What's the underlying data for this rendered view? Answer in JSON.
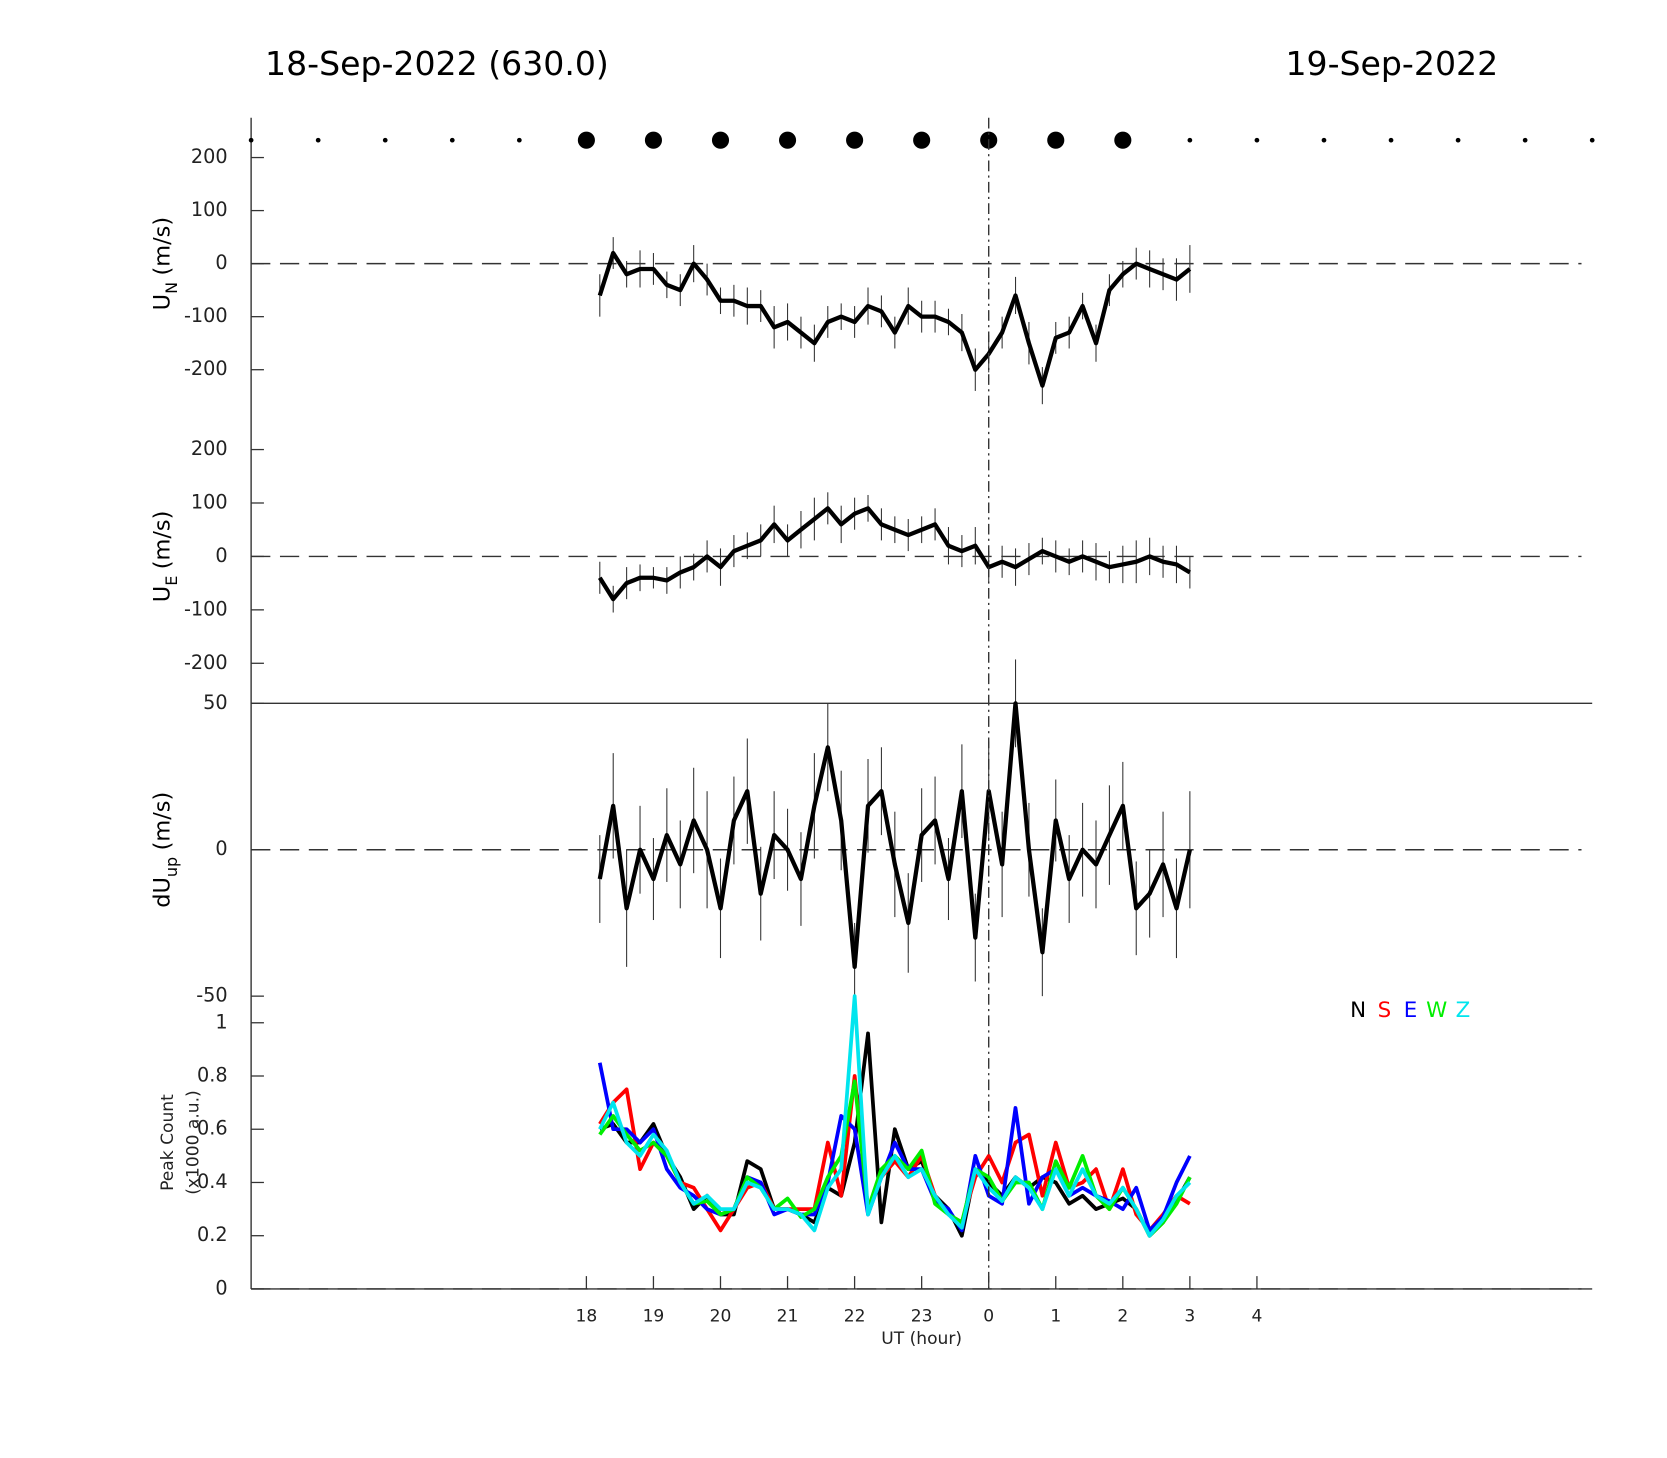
{
  "chart_data": [
    {
      "type": "line",
      "title_left": "18-Sep-2022 (630.0)",
      "title_right": "19-Sep-2022",
      "top_markers_x": [
        13,
        14,
        15,
        16,
        17,
        18,
        19,
        20,
        21,
        22,
        23,
        24,
        25,
        26,
        27,
        28,
        29,
        30,
        31,
        32,
        33
      ],
      "top_markers_large": [
        false,
        false,
        false,
        false,
        false,
        true,
        true,
        true,
        true,
        true,
        true,
        true,
        true,
        true,
        false,
        false,
        false,
        false,
        false,
        false,
        false
      ],
      "vline_x": 24,
      "ylabel": {
        "main": "U",
        "sub": "N",
        "unit": "(m/s)"
      },
      "xlim": [
        13,
        33
      ],
      "ylim": [
        -275,
        275
      ],
      "yticks": [
        -200,
        -100,
        0,
        100,
        200
      ],
      "zero_line": true,
      "x": [
        18.2,
        18.4,
        18.6,
        18.8,
        19,
        19.2,
        19.4,
        19.6,
        19.8,
        20,
        20.2,
        20.4,
        20.6,
        20.8,
        21,
        21.2,
        21.4,
        21.6,
        21.8,
        22,
        22.2,
        22.4,
        22.6,
        22.8,
        23,
        23.2,
        23.4,
        23.6,
        23.8,
        24,
        24.2,
        24.4,
        24.6,
        24.8,
        25,
        25.2,
        25.4,
        25.6,
        25.8,
        26,
        26.2,
        26.4,
        26.6,
        26.8,
        27
      ],
      "series": [
        {
          "color": "#000000",
          "values": [
            -60,
            20,
            -20,
            -10,
            -10,
            -40,
            -50,
            0,
            -30,
            -70,
            -70,
            -80,
            -80,
            -120,
            -110,
            -130,
            -150,
            -110,
            -100,
            -110,
            -80,
            -90,
            -130,
            -80,
            -100,
            -100,
            -110,
            -130,
            -200,
            -170,
            -130,
            -60,
            -150,
            -230,
            -140,
            -130,
            -80,
            -150,
            -50,
            -20,
            0,
            -10,
            -20,
            -30,
            -10
          ],
          "errors": [
            40,
            30,
            25,
            35,
            30,
            25,
            30,
            35,
            30,
            25,
            30,
            35,
            30,
            40,
            35,
            30,
            35,
            30,
            25,
            30,
            35,
            30,
            30,
            35,
            30,
            30,
            25,
            35,
            40,
            35,
            30,
            35,
            40,
            35,
            30,
            30,
            25,
            35,
            30,
            25,
            30,
            35,
            30,
            40,
            45
          ]
        }
      ]
    },
    {
      "type": "line",
      "ylabel": {
        "main": "U",
        "sub": "E",
        "unit": "(m/s)"
      },
      "xlim": [
        13,
        33
      ],
      "ylim": [
        -275,
        275
      ],
      "yticks": [
        -200,
        -100,
        0,
        100,
        200
      ],
      "zero_line": true,
      "x": [
        18.2,
        18.4,
        18.6,
        18.8,
        19,
        19.2,
        19.4,
        19.6,
        19.8,
        20,
        20.2,
        20.4,
        20.6,
        20.8,
        21,
        21.2,
        21.4,
        21.6,
        21.8,
        22,
        22.2,
        22.4,
        22.6,
        22.8,
        23,
        23.2,
        23.4,
        23.6,
        23.8,
        24,
        24.2,
        24.4,
        24.6,
        24.8,
        25,
        25.2,
        25.4,
        25.6,
        25.8,
        26,
        26.2,
        26.4,
        26.6,
        26.8,
        27
      ],
      "series": [
        {
          "color": "#000000",
          "values": [
            -40,
            -80,
            -50,
            -40,
            -40,
            -45,
            -30,
            -20,
            0,
            -20,
            10,
            20,
            30,
            60,
            30,
            50,
            70,
            90,
            60,
            80,
            90,
            60,
            50,
            40,
            50,
            60,
            20,
            10,
            20,
            -20,
            -10,
            -20,
            -5,
            10,
            0,
            -10,
            0,
            -10,
            -20,
            -15,
            -10,
            0,
            -10,
            -15,
            -30
          ],
          "errors": [
            30,
            25,
            30,
            25,
            20,
            25,
            30,
            25,
            30,
            35,
            30,
            25,
            30,
            35,
            30,
            35,
            40,
            30,
            35,
            30,
            25,
            30,
            25,
            30,
            25,
            30,
            35,
            30,
            35,
            30,
            30,
            35,
            30,
            25,
            30,
            25,
            30,
            35,
            30,
            35,
            40,
            35,
            30,
            35,
            30
          ]
        }
      ]
    },
    {
      "type": "line",
      "ylabel": {
        "main": "dU",
        "sub": "up",
        "unit": "(m/s)"
      },
      "xlim": [
        13,
        33
      ],
      "ylim": [
        -50,
        50
      ],
      "yticks": [
        -50,
        0,
        50
      ],
      "zero_line": true,
      "x": [
        18.2,
        18.4,
        18.6,
        18.8,
        19,
        19.2,
        19.4,
        19.6,
        19.8,
        20,
        20.2,
        20.4,
        20.6,
        20.8,
        21,
        21.2,
        21.4,
        21.6,
        21.8,
        22,
        22.2,
        22.4,
        22.6,
        22.8,
        23,
        23.2,
        23.4,
        23.6,
        23.8,
        24,
        24.2,
        24.4,
        24.6,
        24.8,
        25,
        25.2,
        25.4,
        25.6,
        25.8,
        26,
        26.2,
        26.4,
        26.6,
        26.8,
        27
      ],
      "series": [
        {
          "color": "#000000",
          "values": [
            -10,
            15,
            -20,
            0,
            -10,
            5,
            -5,
            10,
            0,
            -20,
            10,
            20,
            -15,
            5,
            0,
            -10,
            15,
            35,
            10,
            -40,
            15,
            20,
            -5,
            -25,
            5,
            10,
            -10,
            20,
            -30,
            20,
            -5,
            50,
            0,
            -35,
            10,
            -10,
            0,
            -5,
            5,
            15,
            -20,
            -15,
            -5,
            -20,
            0
          ],
          "errors": [
            15,
            18,
            20,
            15,
            14,
            16,
            15,
            18,
            20,
            17,
            15,
            18,
            16,
            15,
            14,
            16,
            18,
            15,
            17,
            15,
            16,
            15,
            18,
            17,
            16,
            15,
            14,
            16,
            15,
            17,
            18,
            15,
            16,
            15,
            14,
            15,
            16,
            15,
            17,
            15,
            16,
            15,
            18,
            17,
            20
          ]
        }
      ]
    },
    {
      "type": "line",
      "ylabel": [
        "Peak Count",
        "(x1000 a.u.)"
      ],
      "xlabel": "UT (hour)",
      "xlim": [
        13,
        33
      ],
      "ylim": [
        0,
        1.1
      ],
      "yticks": [
        0,
        0.2,
        0.4,
        0.6,
        0.8,
        1
      ],
      "zero_line": true,
      "xticks": [
        18,
        19,
        20,
        21,
        22,
        23,
        {
          "value": 24,
          "label": "0"
        },
        {
          "value": 25,
          "label": "1"
        },
        {
          "value": 26,
          "label": "2"
        },
        {
          "value": 27,
          "label": "3"
        },
        {
          "value": 28,
          "label": "4"
        }
      ],
      "x": [
        18.2,
        18.4,
        18.6,
        18.8,
        19,
        19.2,
        19.4,
        19.6,
        19.8,
        20,
        20.2,
        20.4,
        20.6,
        20.8,
        21,
        21.2,
        21.4,
        21.6,
        21.8,
        22,
        22.2,
        22.4,
        22.6,
        22.8,
        23,
        23.2,
        23.4,
        23.6,
        23.8,
        24,
        24.2,
        24.4,
        24.6,
        24.8,
        25,
        25.2,
        25.4,
        25.6,
        25.8,
        26,
        26.2,
        26.4,
        26.6,
        26.8,
        27
      ],
      "series": [
        {
          "name": "N",
          "color": "#000000",
          "values": [
            0.6,
            0.62,
            0.55,
            0.55,
            0.62,
            0.5,
            0.42,
            0.3,
            0.35,
            0.28,
            0.28,
            0.48,
            0.45,
            0.3,
            0.3,
            0.28,
            0.25,
            0.38,
            0.35,
            0.55,
            0.96,
            0.25,
            0.6,
            0.45,
            0.48,
            0.35,
            0.3,
            0.2,
            0.45,
            0.4,
            0.35,
            0.42,
            0.38,
            0.42,
            0.4,
            0.32,
            0.35,
            0.3,
            0.32,
            0.34,
            0.3,
            0.2,
            0.25,
            0.33,
            0.42
          ]
        },
        {
          "name": "S",
          "color": "#ff0000",
          "values": [
            0.62,
            0.7,
            0.75,
            0.45,
            0.55,
            0.5,
            0.4,
            0.38,
            0.3,
            0.22,
            0.3,
            0.38,
            0.4,
            0.3,
            0.3,
            0.3,
            0.3,
            0.55,
            0.35,
            0.8,
            0.3,
            0.42,
            0.48,
            0.42,
            0.5,
            0.35,
            0.28,
            0.25,
            0.42,
            0.5,
            0.4,
            0.55,
            0.58,
            0.35,
            0.55,
            0.38,
            0.4,
            0.45,
            0.3,
            0.45,
            0.28,
            0.22,
            0.28,
            0.35,
            0.32
          ]
        },
        {
          "name": "E",
          "color": "#0000ff",
          "values": [
            0.85,
            0.6,
            0.6,
            0.55,
            0.6,
            0.45,
            0.38,
            0.35,
            0.3,
            0.28,
            0.3,
            0.42,
            0.4,
            0.28,
            0.3,
            0.28,
            0.28,
            0.4,
            0.65,
            0.6,
            0.28,
            0.42,
            0.55,
            0.45,
            0.45,
            0.33,
            0.3,
            0.22,
            0.5,
            0.35,
            0.32,
            0.68,
            0.32,
            0.42,
            0.45,
            0.35,
            0.38,
            0.35,
            0.33,
            0.3,
            0.38,
            0.22,
            0.27,
            0.4,
            0.5
          ]
        },
        {
          "name": "W",
          "color": "#00ee00",
          "values": [
            0.58,
            0.65,
            0.58,
            0.52,
            0.55,
            0.5,
            0.4,
            0.32,
            0.33,
            0.28,
            0.3,
            0.42,
            0.38,
            0.3,
            0.34,
            0.27,
            0.3,
            0.42,
            0.5,
            0.78,
            0.3,
            0.45,
            0.5,
            0.45,
            0.52,
            0.32,
            0.28,
            0.25,
            0.45,
            0.42,
            0.33,
            0.4,
            0.4,
            0.3,
            0.48,
            0.38,
            0.5,
            0.35,
            0.3,
            0.38,
            0.3,
            0.2,
            0.25,
            0.32,
            0.42
          ]
        },
        {
          "name": "Z",
          "color": "#00e5ee",
          "values": [
            0.6,
            0.7,
            0.55,
            0.5,
            0.58,
            0.52,
            0.4,
            0.32,
            0.35,
            0.3,
            0.3,
            0.4,
            0.38,
            0.3,
            0.3,
            0.28,
            0.22,
            0.38,
            0.45,
            1.1,
            0.28,
            0.42,
            0.5,
            0.42,
            0.45,
            0.35,
            0.28,
            0.23,
            0.45,
            0.38,
            0.33,
            0.42,
            0.38,
            0.3,
            0.45,
            0.35,
            0.45,
            0.35,
            0.32,
            0.38,
            0.3,
            0.2,
            0.26,
            0.35,
            0.4
          ]
        }
      ]
    }
  ]
}
